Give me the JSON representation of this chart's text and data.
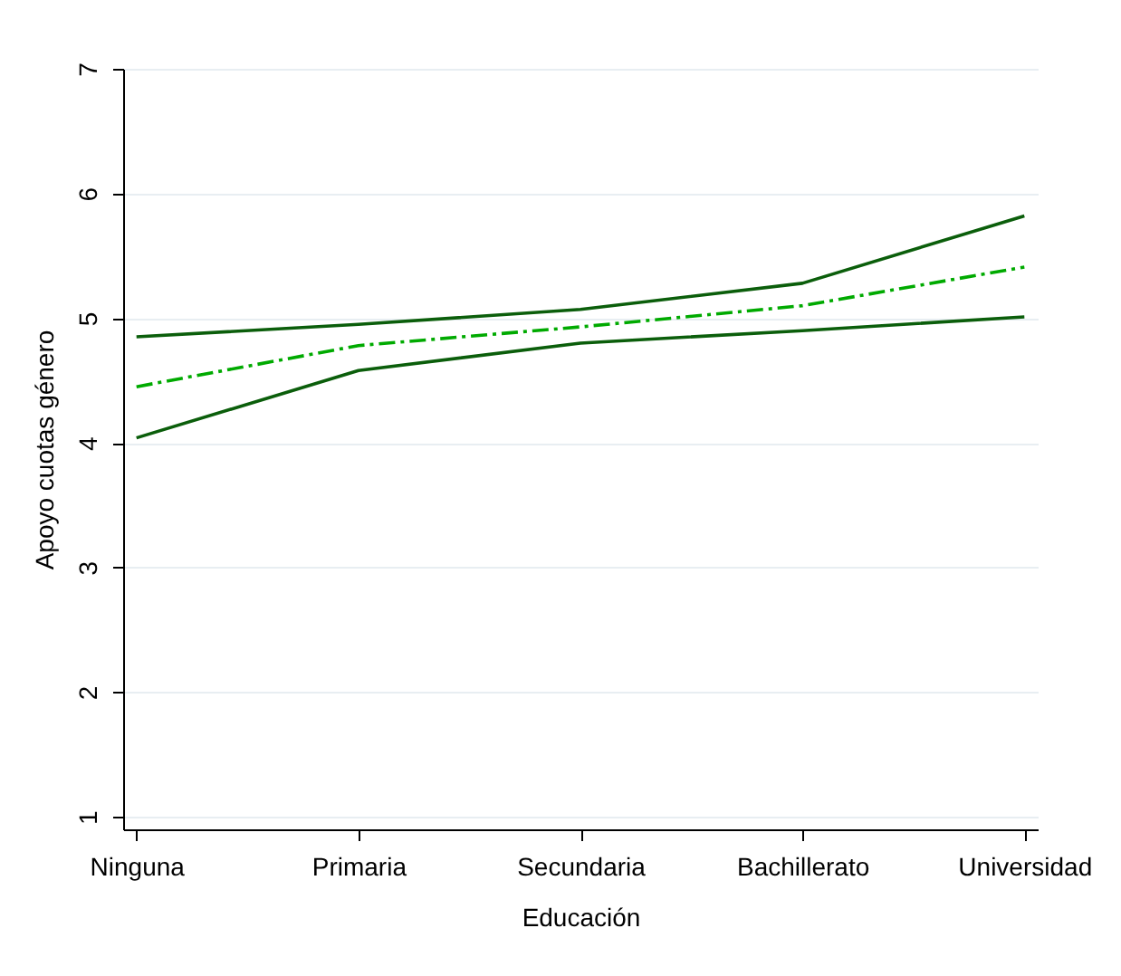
{
  "chart_data": {
    "type": "line",
    "xlabel": "Educación",
    "ylabel": "Apoyo cuotas género",
    "categories": [
      "Ninguna",
      "Primaria",
      "Secundaria",
      "Bachillerato",
      "Universidad"
    ],
    "series": [
      {
        "color": "#0b5e0b",
        "line_style": "solid",
        "values": [
          4.85,
          4.95,
          5.07,
          5.28,
          5.82
        ]
      },
      {
        "color": "#00aa00",
        "line_style": "dashed",
        "values": [
          4.45,
          4.78,
          4.93,
          5.1,
          5.41
        ]
      },
      {
        "color": "#0b5e0b",
        "line_style": "solid",
        "values": [
          4.04,
          4.58,
          4.8,
          4.9,
          5.01
        ]
      }
    ],
    "ylim": [
      0.9,
      7
    ],
    "yticks": [
      1,
      2,
      3,
      4,
      5,
      6,
      7
    ],
    "grid": "y",
    "legend": false,
    "marker": "none"
  }
}
